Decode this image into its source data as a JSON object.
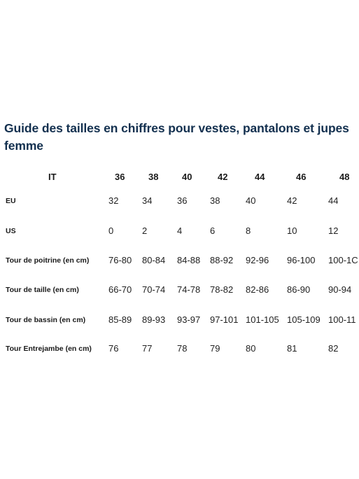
{
  "title": "Guide des tailles en chiffres pour vestes, pantalons et jupes femme",
  "table": {
    "header": {
      "label": "IT",
      "sizes": [
        "36",
        "38",
        "40",
        "42",
        "44",
        "46",
        "48"
      ]
    },
    "rows": [
      {
        "label": "EU",
        "values": [
          "32",
          "34",
          "36",
          "38",
          "40",
          "42",
          "44"
        ]
      },
      {
        "label": "US",
        "values": [
          "0",
          "2",
          "4",
          "6",
          "8",
          "10",
          "12"
        ]
      },
      {
        "label": "Tour de poitrine (en cm)",
        "values": [
          "76-80",
          "80-84",
          "84-88",
          "88-92",
          "92-96",
          "96-100",
          "100-1C"
        ]
      },
      {
        "label": "Tour de taille (en cm)",
        "values": [
          "66-70",
          "70-74",
          "74-78",
          "78-82",
          "82-86",
          "86-90",
          "90-94"
        ]
      },
      {
        "label": "Tour de bassin (en cm)",
        "values": [
          "85-89",
          "89-93",
          "93-97",
          "97-101",
          "101-105",
          "105-109",
          "100-11"
        ]
      },
      {
        "label": "Tour Entrejambe (en cm)",
        "values": [
          "76",
          "77",
          "78",
          "79",
          "80",
          "81",
          "82"
        ]
      }
    ]
  }
}
